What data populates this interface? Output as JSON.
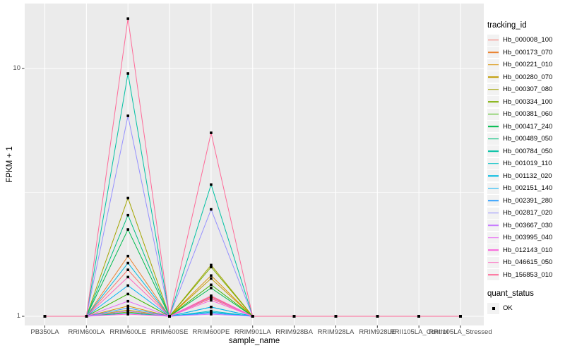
{
  "style": {
    "panel_bg": "#EBEBEB",
    "grid_color": "#FFFFFF",
    "tick_color": "#333333",
    "tick_label_color": "#4D4D4D",
    "point_color": "#000000",
    "legend_key_bg": "#F2F2F2"
  },
  "chart_data": {
    "type": "line",
    "xlabel": "sample_name",
    "ylabel": "FPKM + 1",
    "y_scale": "log10",
    "y_ticks": [
      1,
      10
    ],
    "y_tick_labels": [
      "1",
      "10"
    ],
    "y_minor_ticks": [
      3.162
    ],
    "ylim": [
      0.92,
      18.3
    ],
    "grid": true,
    "legend_position": "right",
    "point_shape": "square",
    "categories": [
      "PB350LA",
      "RRIM600LA",
      "RRIM600LE",
      "RRIM600SE",
      "RRIM600PE",
      "RRIM901LA",
      "RRIM928BA",
      "RRIM928LA",
      "RRIM928LE",
      "RRII105LA_Control",
      "RRII105LA_Stressed"
    ],
    "series": [
      {
        "name": "Hb_000008_100",
        "color": "#F8766D",
        "values": [
          1,
          1,
          1.54,
          1,
          1.18,
          1,
          1,
          1,
          1,
          1,
          1
        ]
      },
      {
        "name": "Hb_000173_070",
        "color": "#EA8331",
        "values": [
          1,
          1,
          1.75,
          1,
          1.2,
          1,
          1,
          1,
          1,
          1,
          1
        ]
      },
      {
        "name": "Hb_000221_010",
        "color": "#D89000",
        "values": [
          1,
          1,
          1.1,
          1,
          1.46,
          1,
          1,
          1,
          1,
          1,
          1
        ]
      },
      {
        "name": "Hb_000280_070",
        "color": "#C09B00",
        "values": [
          1,
          1,
          1.06,
          1,
          1.42,
          1,
          1,
          1,
          1,
          1,
          1
        ]
      },
      {
        "name": "Hb_000307_080",
        "color": "#A3A500",
        "values": [
          1,
          1,
          3.0,
          1,
          1.61,
          1,
          1,
          1,
          1,
          1,
          1
        ]
      },
      {
        "name": "Hb_000334_100",
        "color": "#7CAE00",
        "values": [
          1,
          1,
          1.04,
          1,
          1.58,
          1,
          1,
          1,
          1,
          1,
          1
        ]
      },
      {
        "name": "Hb_000381_060",
        "color": "#39B600",
        "values": [
          1,
          1,
          1.23,
          1,
          1.34,
          1,
          1,
          1,
          1,
          1,
          1
        ]
      },
      {
        "name": "Hb_000417_240",
        "color": "#00BB4E",
        "values": [
          1,
          1,
          2.24,
          1,
          1.3,
          1,
          1,
          1,
          1,
          1,
          1
        ]
      },
      {
        "name": "Hb_000489_050",
        "color": "#00BF7D",
        "values": [
          1,
          1,
          2.56,
          1,
          1.09,
          1,
          1,
          1,
          1,
          1,
          1
        ]
      },
      {
        "name": "Hb_000784_050",
        "color": "#00C1A3",
        "values": [
          1,
          1,
          9.55,
          1,
          3.4,
          1,
          1,
          1,
          1,
          1,
          1
        ]
      },
      {
        "name": "Hb_001019_110",
        "color": "#00BFC4",
        "values": [
          1,
          1,
          1.03,
          1,
          1.05,
          1,
          1,
          1,
          1,
          1,
          1
        ]
      },
      {
        "name": "Hb_001132_020",
        "color": "#00BAE0",
        "values": [
          1,
          1,
          1.64,
          1,
          1.04,
          1,
          1,
          1,
          1,
          1,
          1
        ]
      },
      {
        "name": "Hb_002151_140",
        "color": "#00B0F6",
        "values": [
          1,
          1,
          1.33,
          1,
          1.09,
          1,
          1,
          1,
          1,
          1,
          1
        ]
      },
      {
        "name": "Hb_002391_280",
        "color": "#35A2FF",
        "values": [
          1,
          1,
          1.08,
          1,
          1.03,
          1,
          1,
          1,
          1,
          1,
          1
        ]
      },
      {
        "name": "Hb_002817_020",
        "color": "#9590FF",
        "values": [
          1,
          1,
          6.44,
          1,
          2.7,
          1,
          1,
          1,
          1,
          1,
          1
        ]
      },
      {
        "name": "Hb_003667_030",
        "color": "#C77CFF",
        "values": [
          1,
          1,
          1.05,
          1,
          1.02,
          1,
          1,
          1,
          1,
          1,
          1
        ]
      },
      {
        "name": "Hb_003995_040",
        "color": "#E76BF3",
        "values": [
          1,
          1,
          1.15,
          1,
          1.19,
          1,
          1,
          1,
          1,
          1,
          1
        ]
      },
      {
        "name": "Hb_012143_010",
        "color": "#FA62DB",
        "values": [
          1,
          1,
          1.02,
          1,
          1.16,
          1,
          1,
          1,
          1,
          1,
          1
        ]
      },
      {
        "name": "Hb_046615_050",
        "color": "#FF62BC",
        "values": [
          1,
          1,
          1.44,
          1,
          1.21,
          1,
          1,
          1,
          1,
          1,
          1
        ]
      },
      {
        "name": "Hb_156853_010",
        "color": "#FF6A98",
        "values": [
          1,
          1,
          15.9,
          1,
          5.5,
          1,
          1,
          1,
          1,
          1,
          1
        ]
      }
    ]
  },
  "legend": {
    "tracking_title": "tracking_id",
    "quant_title": "quant_status",
    "quant_items": [
      {
        "label": "OK"
      }
    ]
  }
}
